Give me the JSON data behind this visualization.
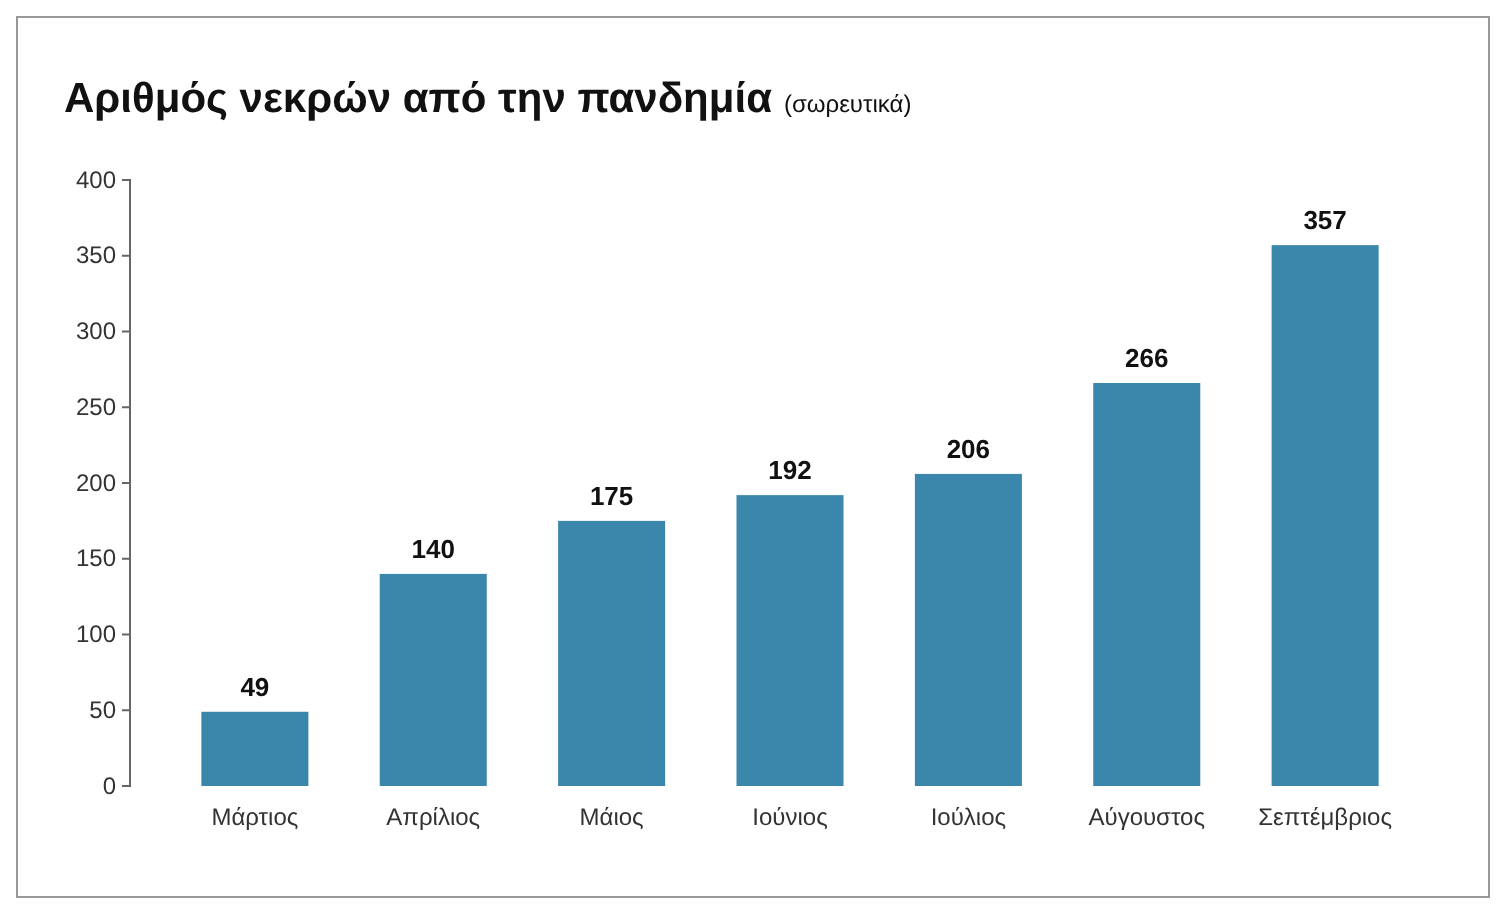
{
  "chart_data": {
    "type": "bar",
    "title": "Αριθμός νεκρών από την πανδημία",
    "subtitle": "(σωρευτικά)",
    "categories": [
      "Μάρτιος",
      "Απρίλιος",
      "Μάιος",
      "Ιούνιος",
      "Ιούλιος",
      "Αύγουστος",
      "Σεπτέμβριος"
    ],
    "values": [
      49,
      140,
      175,
      192,
      206,
      266,
      357
    ],
    "color": "#3b87ab",
    "ylim": [
      0,
      400
    ],
    "yticks": [
      0,
      50,
      100,
      150,
      200,
      250,
      300,
      350,
      400
    ],
    "data_labels": true,
    "grid": false
  }
}
